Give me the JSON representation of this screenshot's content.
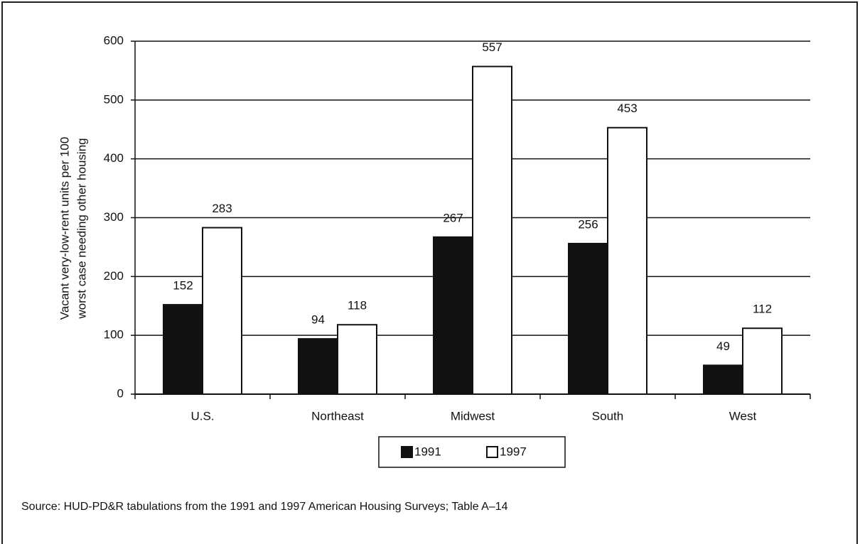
{
  "chart_data": {
    "type": "bar",
    "ylabel": [
      "Vacant very-low-rent units per 100",
      "worst case needing other housing"
    ],
    "categories": [
      "U.S.",
      "Northeast",
      "Midwest",
      "South",
      "West"
    ],
    "series": [
      {
        "name": "1991",
        "color": "#111111",
        "values": [
          152,
          94,
          267,
          256,
          49
        ]
      },
      {
        "name": "1997",
        "color": "#ffffff",
        "values": [
          283,
          118,
          557,
          453,
          112
        ]
      }
    ],
    "ylim": [
      0,
      600
    ],
    "yticks": [
      0,
      100,
      200,
      300,
      400,
      500,
      600
    ],
    "grid": true,
    "legend": "bottom",
    "source": "Source: HUD-PD&R tabulations from the 1991 and 1997 American Housing Surveys; Table A–14"
  }
}
